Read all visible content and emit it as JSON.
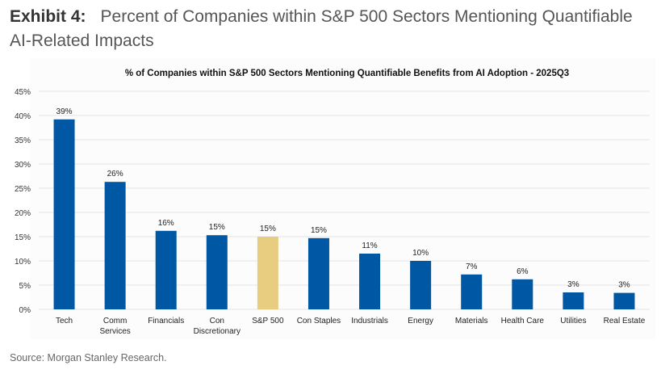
{
  "exhibit": {
    "label": "Exhibit 4:",
    "title": "Percent of Companies within S&P 500 Sectors Mentioning Quantifiable AI-Related Impacts"
  },
  "source": "Source: Morgan Stanley Research.",
  "colors": {
    "sector": "#0057a3",
    "benchmark": "#e8cc80",
    "grid": "#e4e4e4"
  },
  "chart_data": {
    "type": "bar",
    "title": "% of Companies within S&P 500 Sectors Mentioning Quantifiable Benefits from AI Adoption - 2025Q3",
    "xlabel": "",
    "ylabel": "",
    "ylim": [
      0,
      45
    ],
    "yticks": [
      "0%",
      "5%",
      "10%",
      "15%",
      "20%",
      "25%",
      "30%",
      "35%",
      "40%",
      "45%"
    ],
    "grid": true,
    "categories": [
      [
        "Tech"
      ],
      [
        "Comm",
        "Services"
      ],
      [
        "Financials"
      ],
      [
        "Con",
        "Discretionary"
      ],
      [
        "S&P 500"
      ],
      [
        "Con Staples"
      ],
      [
        "Industrials"
      ],
      [
        "Energy"
      ],
      [
        "Materials"
      ],
      [
        "Health Care"
      ],
      [
        "Utilities"
      ],
      [
        "Real Estate"
      ]
    ],
    "values": [
      39.2,
      26.3,
      16.2,
      15.3,
      15.0,
      14.7,
      11.5,
      10.0,
      7.2,
      6.2,
      3.5,
      3.4
    ],
    "data_labels": [
      "39%",
      "26%",
      "16%",
      "15%",
      "15%",
      "15%",
      "11%",
      "10%",
      "7%",
      "6%",
      "3%",
      "3%"
    ],
    "highlight": [
      "S&P 500"
    ]
  }
}
